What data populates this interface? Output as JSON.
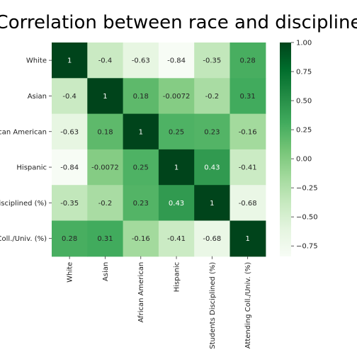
{
  "chart_data": {
    "type": "heatmap",
    "title": "Correlation between race and discipline",
    "x_labels": [
      "White",
      "Asian",
      "African American",
      "Hispanic",
      "Students Disciplined (%)",
      "Attending Coll./Univ. (%)"
    ],
    "y_labels": [
      "White",
      "Asian",
      "African American",
      "Hispanic",
      "Students Disciplined (%)",
      "Attending Coll./Univ. (%)"
    ],
    "values": [
      [
        1,
        -0.4,
        -0.63,
        -0.84,
        -0.35,
        0.28
      ],
      [
        -0.4,
        1,
        0.18,
        -0.0072,
        -0.2,
        0.31
      ],
      [
        -0.63,
        0.18,
        1,
        0.25,
        0.23,
        -0.16
      ],
      [
        -0.84,
        -0.0072,
        0.25,
        1,
        0.43,
        -0.41
      ],
      [
        -0.35,
        -0.2,
        0.23,
        0.43,
        1,
        -0.68
      ],
      [
        0.28,
        0.31,
        -0.16,
        -0.41,
        -0.68,
        1
      ]
    ],
    "value_labels": [
      [
        "1",
        "-0.4",
        "-0.63",
        "-0.84",
        "-0.35",
        "0.28"
      ],
      [
        "-0.4",
        "1",
        "0.18",
        "-0.0072",
        "-0.2",
        "0.31"
      ],
      [
        "-0.63",
        "0.18",
        "1",
        "0.25",
        "0.23",
        "-0.16"
      ],
      [
        "-0.84",
        "-0.0072",
        "0.25",
        "1",
        "0.43",
        "-0.41"
      ],
      [
        "-0.35",
        "-0.2",
        "0.23",
        "0.43",
        "1",
        "-0.68"
      ],
      [
        "0.28",
        "0.31",
        "-0.16",
        "-0.41",
        "-0.68",
        "1"
      ]
    ],
    "colormap": "Greens",
    "colormap_stops": [
      "#f7fcf5",
      "#e5f5e0",
      "#c7e9c0",
      "#a1d99b",
      "#74c476",
      "#41ab5d",
      "#238b45",
      "#006d2c",
      "#00441b"
    ],
    "vmin": -0.84,
    "vmax": 1,
    "colorbar_ticks": [
      1.0,
      0.75,
      0.5,
      0.25,
      0.0,
      -0.25,
      -0.5,
      -0.75
    ],
    "colorbar_tick_labels": [
      "1.00",
      "0.75",
      "0.50",
      "0.25",
      "0.00",
      "−0.25",
      "−0.50",
      "−0.75"
    ],
    "colorbar_position": "right"
  }
}
